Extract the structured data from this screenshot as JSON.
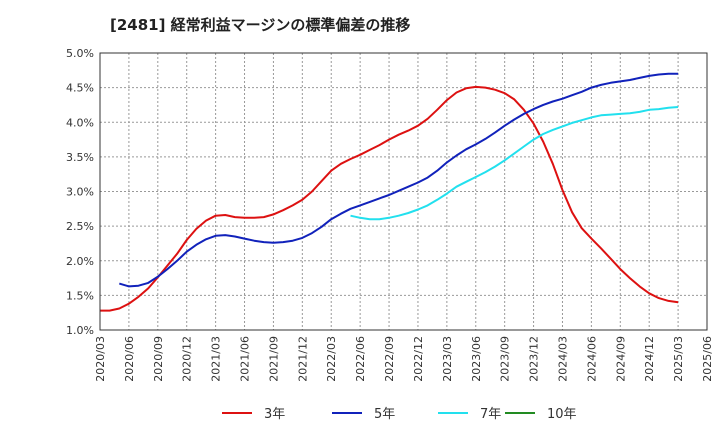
{
  "chart_data": {
    "type": "line",
    "title": "[2481]  経常利益マージンの標準偏差の推移",
    "xlabel": "",
    "ylabel": "",
    "ylim": [
      1.0,
      5.0
    ],
    "y_ticks": [
      "1.0%",
      "1.5%",
      "2.0%",
      "2.5%",
      "3.0%",
      "3.5%",
      "4.0%",
      "4.5%",
      "5.0%"
    ],
    "x_ticks": [
      "2020/03",
      "2020/06",
      "2020/09",
      "2020/12",
      "2021/03",
      "2021/06",
      "2021/09",
      "2021/12",
      "2022/03",
      "2022/06",
      "2022/09",
      "2022/12",
      "2023/03",
      "2023/06",
      "2023/09",
      "2023/12",
      "2024/03",
      "2024/06",
      "2024/09",
      "2024/12",
      "2025/03",
      "2025/06"
    ],
    "grid": true,
    "legend_position": "bottom",
    "series": [
      {
        "name": "3年",
        "color": "#dd1111",
        "values": [
          [
            "2020/03",
            1.28
          ],
          [
            "2020/04",
            1.28
          ],
          [
            "2020/05",
            1.31
          ],
          [
            "2020/06",
            1.38
          ],
          [
            "2020/07",
            1.48
          ],
          [
            "2020/08",
            1.6
          ],
          [
            "2020/09",
            1.76
          ],
          [
            "2020/10",
            1.93
          ],
          [
            "2020/11",
            2.1
          ],
          [
            "2020/12",
            2.3
          ],
          [
            "2021/01",
            2.46
          ],
          [
            "2021/02",
            2.58
          ],
          [
            "2021/03",
            2.65
          ],
          [
            "2021/04",
            2.66
          ],
          [
            "2021/05",
            2.63
          ],
          [
            "2021/06",
            2.62
          ],
          [
            "2021/07",
            2.62
          ],
          [
            "2021/08",
            2.63
          ],
          [
            "2021/09",
            2.67
          ],
          [
            "2021/10",
            2.73
          ],
          [
            "2021/11",
            2.8
          ],
          [
            "2021/12",
            2.88
          ],
          [
            "2022/01",
            3.0
          ],
          [
            "2022/02",
            3.15
          ],
          [
            "2022/03",
            3.3
          ],
          [
            "2022/04",
            3.4
          ],
          [
            "2022/05",
            3.47
          ],
          [
            "2022/06",
            3.53
          ],
          [
            "2022/07",
            3.6
          ],
          [
            "2022/08",
            3.67
          ],
          [
            "2022/09",
            3.75
          ],
          [
            "2022/10",
            3.82
          ],
          [
            "2022/11",
            3.88
          ],
          [
            "2022/12",
            3.95
          ],
          [
            "2023/01",
            4.05
          ],
          [
            "2023/02",
            4.18
          ],
          [
            "2023/03",
            4.32
          ],
          [
            "2023/04",
            4.43
          ],
          [
            "2023/05",
            4.49
          ],
          [
            "2023/06",
            4.51
          ],
          [
            "2023/07",
            4.5
          ],
          [
            "2023/08",
            4.47
          ],
          [
            "2023/09",
            4.42
          ],
          [
            "2023/10",
            4.33
          ],
          [
            "2023/11",
            4.18
          ],
          [
            "2023/12",
            3.98
          ],
          [
            "2024/01",
            3.72
          ],
          [
            "2024/02",
            3.4
          ],
          [
            "2024/03",
            3.02
          ],
          [
            "2024/04",
            2.7
          ],
          [
            "2024/05",
            2.47
          ],
          [
            "2024/06",
            2.32
          ],
          [
            "2024/07",
            2.18
          ],
          [
            "2024/08",
            2.03
          ],
          [
            "2024/09",
            1.88
          ],
          [
            "2024/10",
            1.75
          ],
          [
            "2024/11",
            1.63
          ],
          [
            "2024/12",
            1.53
          ],
          [
            "2025/01",
            1.46
          ],
          [
            "2025/02",
            1.42
          ],
          [
            "2025/03",
            1.4
          ]
        ]
      },
      {
        "name": "5年",
        "color": "#1122bb",
        "values": [
          [
            "2020/05",
            1.67
          ],
          [
            "2020/06",
            1.63
          ],
          [
            "2020/07",
            1.64
          ],
          [
            "2020/08",
            1.68
          ],
          [
            "2020/09",
            1.77
          ],
          [
            "2020/10",
            1.88
          ],
          [
            "2020/11",
            2.0
          ],
          [
            "2020/12",
            2.13
          ],
          [
            "2021/01",
            2.23
          ],
          [
            "2021/02",
            2.31
          ],
          [
            "2021/03",
            2.36
          ],
          [
            "2021/04",
            2.37
          ],
          [
            "2021/05",
            2.35
          ],
          [
            "2021/06",
            2.32
          ],
          [
            "2021/07",
            2.29
          ],
          [
            "2021/08",
            2.27
          ],
          [
            "2021/09",
            2.26
          ],
          [
            "2021/10",
            2.27
          ],
          [
            "2021/11",
            2.29
          ],
          [
            "2021/12",
            2.33
          ],
          [
            "2022/01",
            2.4
          ],
          [
            "2022/02",
            2.49
          ],
          [
            "2022/03",
            2.6
          ],
          [
            "2022/04",
            2.68
          ],
          [
            "2022/05",
            2.75
          ],
          [
            "2022/06",
            2.8
          ],
          [
            "2022/07",
            2.85
          ],
          [
            "2022/08",
            2.9
          ],
          [
            "2022/09",
            2.95
          ],
          [
            "2022/10",
            3.01
          ],
          [
            "2022/11",
            3.07
          ],
          [
            "2022/12",
            3.13
          ],
          [
            "2023/01",
            3.2
          ],
          [
            "2023/02",
            3.3
          ],
          [
            "2023/03",
            3.42
          ],
          [
            "2023/04",
            3.52
          ],
          [
            "2023/05",
            3.61
          ],
          [
            "2023/06",
            3.68
          ],
          [
            "2023/07",
            3.76
          ],
          [
            "2023/08",
            3.85
          ],
          [
            "2023/09",
            3.95
          ],
          [
            "2023/10",
            4.04
          ],
          [
            "2023/11",
            4.12
          ],
          [
            "2023/12",
            4.19
          ],
          [
            "2024/01",
            4.25
          ],
          [
            "2024/02",
            4.3
          ],
          [
            "2024/03",
            4.34
          ],
          [
            "2024/04",
            4.39
          ],
          [
            "2024/05",
            4.44
          ],
          [
            "2024/06",
            4.5
          ],
          [
            "2024/07",
            4.54
          ],
          [
            "2024/08",
            4.57
          ],
          [
            "2024/09",
            4.59
          ],
          [
            "2024/10",
            4.61
          ],
          [
            "2024/11",
            4.64
          ],
          [
            "2024/12",
            4.67
          ],
          [
            "2025/01",
            4.69
          ],
          [
            "2025/02",
            4.7
          ],
          [
            "2025/03",
            4.7
          ]
        ]
      },
      {
        "name": "7年",
        "color": "#22e0ee",
        "values": [
          [
            "2022/05",
            2.65
          ],
          [
            "2022/06",
            2.62
          ],
          [
            "2022/07",
            2.6
          ],
          [
            "2022/08",
            2.6
          ],
          [
            "2022/09",
            2.62
          ],
          [
            "2022/10",
            2.65
          ],
          [
            "2022/11",
            2.69
          ],
          [
            "2022/12",
            2.74
          ],
          [
            "2023/01",
            2.8
          ],
          [
            "2023/02",
            2.88
          ],
          [
            "2023/03",
            2.97
          ],
          [
            "2023/04",
            3.07
          ],
          [
            "2023/05",
            3.14
          ],
          [
            "2023/06",
            3.21
          ],
          [
            "2023/07",
            3.28
          ],
          [
            "2023/08",
            3.36
          ],
          [
            "2023/09",
            3.45
          ],
          [
            "2023/10",
            3.55
          ],
          [
            "2023/11",
            3.65
          ],
          [
            "2023/12",
            3.75
          ],
          [
            "2024/01",
            3.83
          ],
          [
            "2024/02",
            3.89
          ],
          [
            "2024/03",
            3.94
          ],
          [
            "2024/04",
            3.99
          ],
          [
            "2024/05",
            4.03
          ],
          [
            "2024/06",
            4.07
          ],
          [
            "2024/07",
            4.1
          ],
          [
            "2024/08",
            4.11
          ],
          [
            "2024/09",
            4.12
          ],
          [
            "2024/10",
            4.13
          ],
          [
            "2024/11",
            4.15
          ],
          [
            "2024/12",
            4.18
          ],
          [
            "2025/01",
            4.19
          ],
          [
            "2025/02",
            4.21
          ],
          [
            "2025/03",
            4.22
          ]
        ]
      },
      {
        "name": "10年",
        "color": "#228b22",
        "values": []
      }
    ]
  }
}
